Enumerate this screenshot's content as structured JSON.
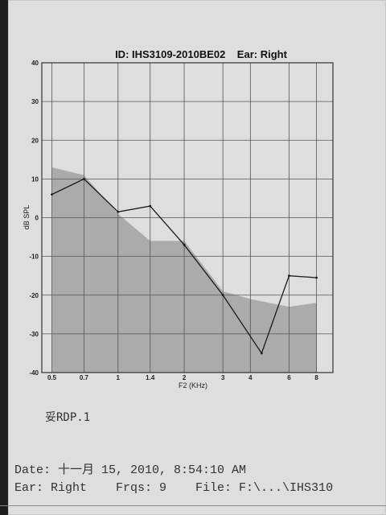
{
  "chart_data": {
    "type": "line",
    "title": "ID: IHS3109-2010BE02    Ear: Right",
    "xlabel": "F2 (KHz)",
    "ylabel": "dB SPL",
    "x_scale": "log",
    "xlim": [
      0.45,
      9.5
    ],
    "ylim": [
      -40,
      40
    ],
    "x_ticks": [
      0.5,
      0.7,
      1,
      1.4,
      2,
      3,
      4,
      6,
      8
    ],
    "x_tick_labels": [
      "0.5",
      "0.7",
      "1",
      "1.4",
      "2",
      "3",
      "4",
      "6",
      "8"
    ],
    "y_ticks": [
      -40,
      -30,
      -20,
      -10,
      0,
      10,
      20,
      30,
      40
    ],
    "y_tick_labels": [
      "-40",
      "-30",
      "-20",
      "-10",
      "0",
      "10",
      "20",
      "30",
      "40"
    ],
    "grid": true,
    "series": [
      {
        "kind": "line",
        "x": [
          0.5,
          0.7,
          1,
          1.4,
          2,
          3,
          4.5,
          6,
          8
        ],
        "y": [
          6,
          10,
          1.5,
          3,
          -7,
          -20,
          -35,
          -15,
          -15.5
        ]
      },
      {
        "kind": "area",
        "x": [
          0.5,
          0.7,
          1,
          1.4,
          2,
          3,
          4,
          6,
          8
        ],
        "y": [
          13,
          11,
          1,
          -6,
          -6,
          -19,
          -21,
          -23,
          -22
        ],
        "baseline": -40
      }
    ],
    "colors": {
      "line": "#1a1a1a",
      "area": "#9a9a9a",
      "grid": "#555555"
    }
  },
  "note": "妥RDP.1",
  "footer": {
    "date_line": "Date: 十一月 15, 2010, 8:54:10 AM",
    "ear_line": "Ear: Right    Frqs: 9    File: F:\\...\\IHS310"
  }
}
